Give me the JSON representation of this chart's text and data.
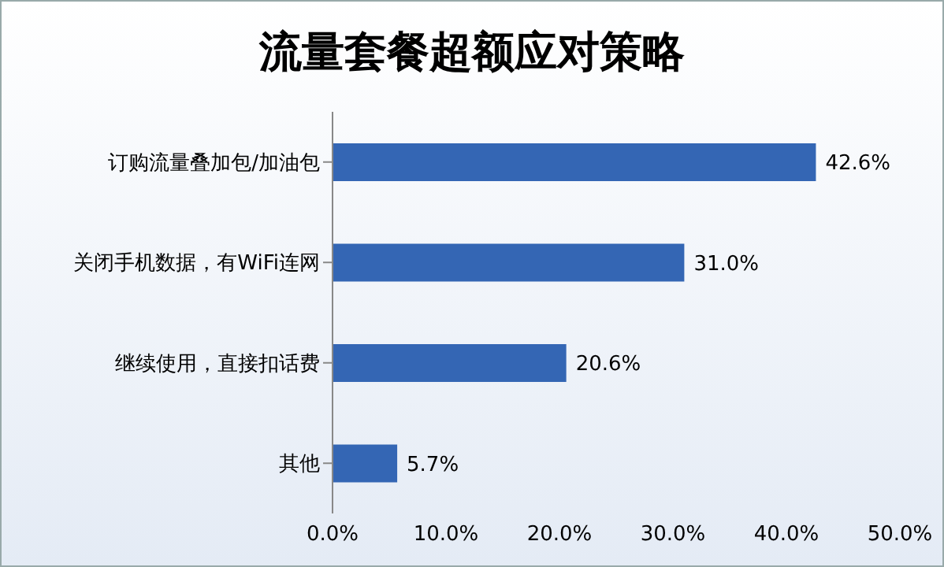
{
  "chart_data": {
    "type": "bar",
    "orientation": "horizontal",
    "title": "流量套餐超额应对策略",
    "categories": [
      "订购流量叠加包/加油包",
      "关闭手机数据，有WiFi连网",
      "继续使用，直接扣话费",
      "其他"
    ],
    "values": [
      42.6,
      31.0,
      20.6,
      5.7
    ],
    "value_labels": [
      "42.6%",
      "31.0%",
      "20.6%",
      "5.7%"
    ],
    "color": "#3466b4",
    "xlim": [
      0,
      50
    ],
    "xticks": [
      {
        "value": 0,
        "label": "0.0%"
      },
      {
        "value": 10,
        "label": "10.0%"
      },
      {
        "value": 20,
        "label": "20.0%"
      },
      {
        "value": 30,
        "label": "30.0%"
      },
      {
        "value": 40,
        "label": "40.0%"
      },
      {
        "value": 50,
        "label": "50.0%"
      }
    ],
    "grid": false,
    "legend": false
  }
}
